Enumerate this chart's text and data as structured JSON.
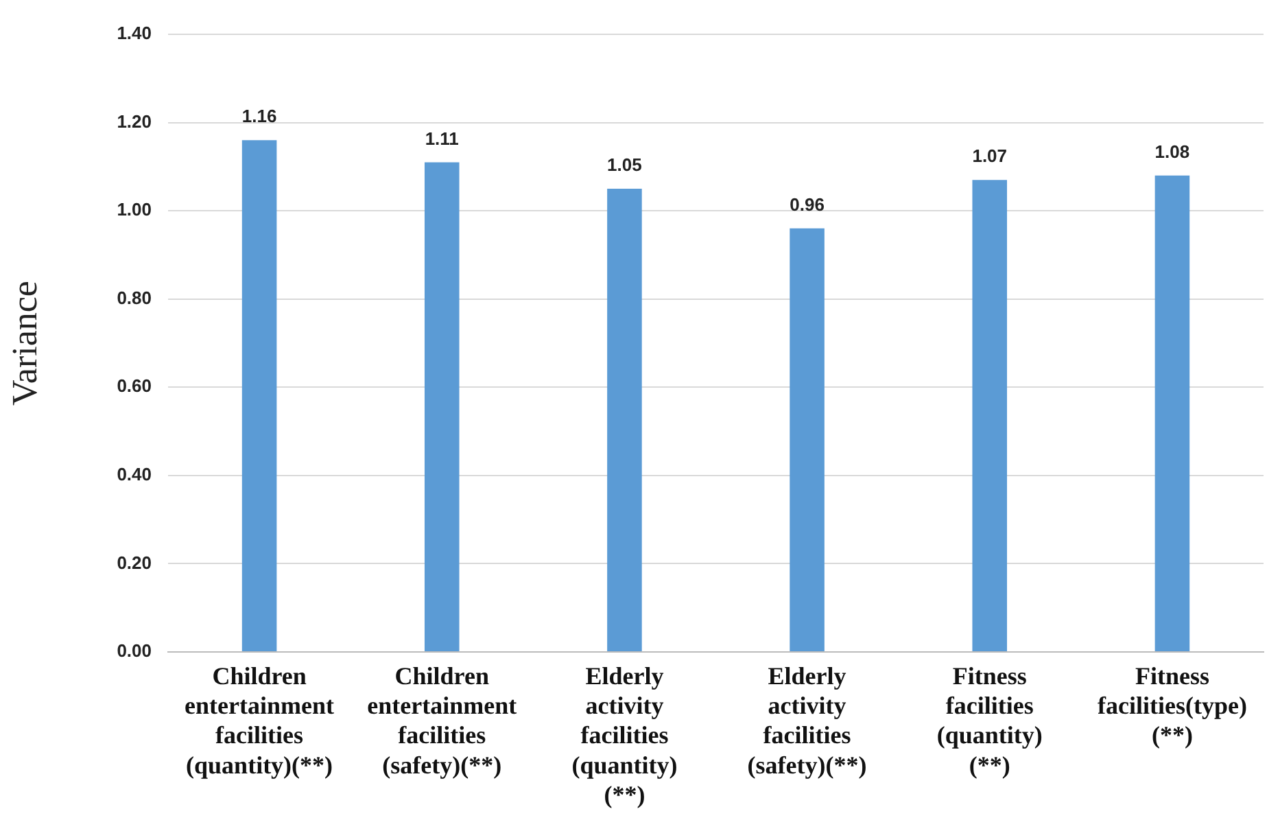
{
  "chart_data": {
    "type": "bar",
    "ylabel": "Variance",
    "categories": [
      "Children entertainment facilities (quantity)(**)",
      "Children entertainment facilities (safety)(**)",
      "Elderly activity facilities (quantity) (**)",
      "Elderly activity facilities (safety)(**)",
      "Fitness facilities (quantity) (**)",
      "Fitness facilities(type) (**)"
    ],
    "values": [
      1.16,
      1.11,
      1.05,
      0.96,
      1.07,
      1.08
    ],
    "color": "#5b9bd5",
    "ylim": [
      0,
      1.4
    ],
    "yticks": [
      {
        "value": 0,
        "label": "0.00"
      },
      {
        "value": 0.2,
        "label": "0.20"
      },
      {
        "value": 0.4,
        "label": "0.40"
      },
      {
        "value": 0.6,
        "label": "0.60"
      },
      {
        "value": 0.8,
        "label": "0.80"
      },
      {
        "value": 1,
        "label": "1.00"
      },
      {
        "value": 1.2,
        "label": "1.20"
      },
      {
        "value": 1.4,
        "label": "1.40"
      }
    ],
    "grid": "y",
    "data_labels": true,
    "legend": false
  }
}
